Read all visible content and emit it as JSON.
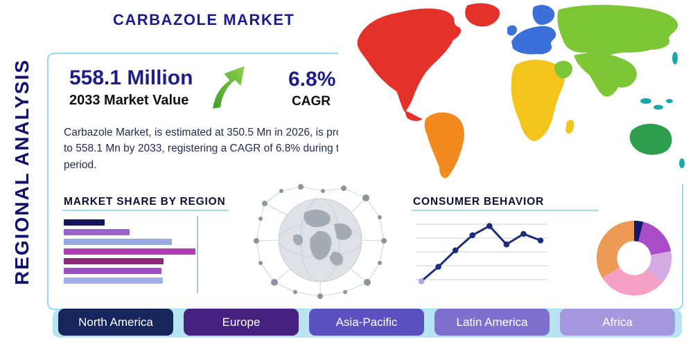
{
  "page": {
    "side_title": "REGIONAL ANALYSIS",
    "title": "CARBAZOLE MARKET"
  },
  "stats": {
    "market_value": "558.1 Million",
    "market_value_label": "2033 Market Value",
    "cagr_value": "6.8%",
    "cagr_label": "CAGR",
    "description": "Carbazole Market, is estimated at 350.5 Mn in 2026, is projected to grow to 558.1 Mn by 2033, registering a CAGR of 6.8% during the forecast period."
  },
  "sections": {
    "market_share_title": "MARKET SHARE BY REGION",
    "consumer_behavior_title": "CONSUMER BEHAVIOR"
  },
  "regions": [
    "North America",
    "Europe",
    "Asia-Pacific",
    "Latin America",
    "Africa"
  ],
  "region_button_colors": [
    "#16265c",
    "#46217f",
    "#5a50c0",
    "#7f70d0",
    "#a598df"
  ],
  "theme": {
    "panel_border": "#93dbee",
    "heading_rule": "#9edff0",
    "bottom_strip": "#b9e5f3",
    "navy_text": "#1d1d85",
    "arrow_green": "#6abe3a"
  },
  "chart_data": [
    {
      "type": "bar",
      "orientation": "horizontal",
      "title": "MARKET SHARE BY REGION",
      "categories": [
        "",
        "",
        "",
        "",
        "",
        "",
        ""
      ],
      "values": [
        31,
        50,
        82,
        100,
        76,
        74,
        75
      ],
      "colors": [
        "#16165e",
        "#9a62cc",
        "#96abe4",
        "#b13cb6",
        "#8e2878",
        "#a04ec6",
        "#9fb0e8"
      ],
      "xlim": [
        0,
        100
      ],
      "grid": false
    },
    {
      "type": "line",
      "title": "CONSUMER BEHAVIOR",
      "x": [
        1,
        2,
        3,
        4,
        5,
        6,
        7,
        8
      ],
      "values": [
        8,
        30,
        55,
        78,
        92,
        64,
        80,
        70
      ],
      "ylim": [
        0,
        100
      ],
      "line_color": "#1d2b7d",
      "first_point_color": "#b7a4e6",
      "grid": true
    },
    {
      "type": "pie",
      "title": "Regional share donut",
      "donut": true,
      "labels": [
        "",
        "",
        "",
        "",
        ""
      ],
      "values": [
        4,
        18,
        14,
        30,
        34
      ],
      "colors": [
        "#16166a",
        "#a84cc8",
        "#d4abe4",
        "#f5a0c5",
        "#ec9a54"
      ]
    }
  ],
  "map": {
    "colors": {
      "north_america": "#e4322b",
      "greenland": "#e4322b",
      "south_america": "#f28a1f",
      "europe": "#3a70d8",
      "africa": "#f3c41c",
      "asia": "#7dc636",
      "islands": "#1aa7ad",
      "australia": "#2f9e4c"
    }
  }
}
